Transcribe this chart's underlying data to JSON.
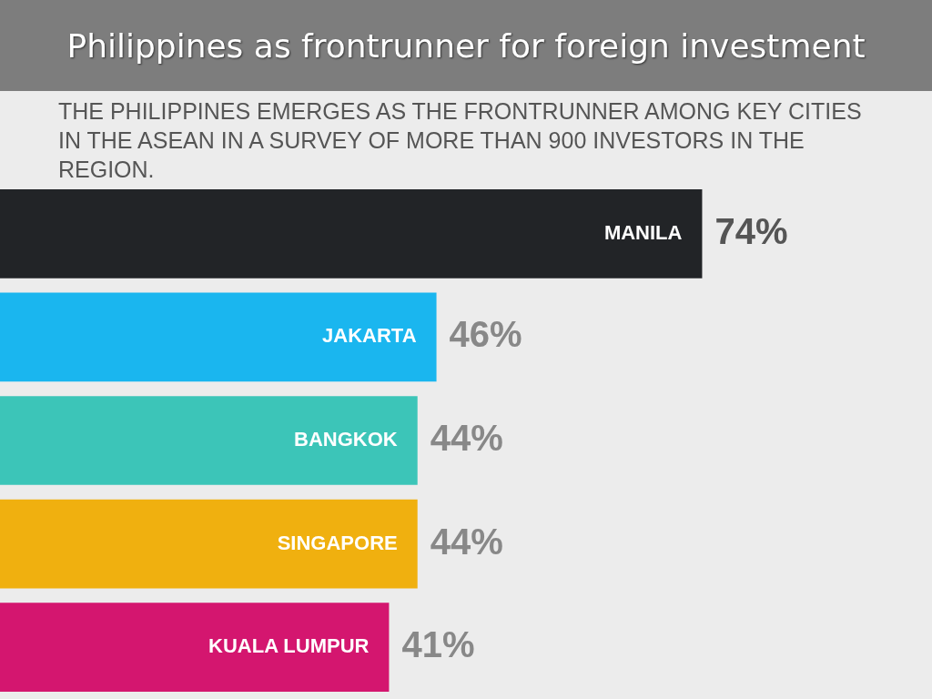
{
  "chart_data": {
    "type": "bar",
    "orientation": "horizontal",
    "title": "Philippines as frontrunner for foreign investment",
    "subtitle": "THE PHILIPPINES EMERGES AS THE FRONTRUNNER AMONG KEY CITIES IN THE ASEAN IN A SURVEY OF MORE THAN 900 INVESTORS IN THE REGION.",
    "categories": [
      "MANILA",
      "JAKARTA",
      "BANGKOK",
      "SINGAPORE",
      "KUALA LUMPUR"
    ],
    "values": [
      74,
      46,
      44,
      44,
      41
    ],
    "value_labels": [
      "74%",
      "46%",
      "44%",
      "44%",
      "41%"
    ],
    "colors": [
      "#222427",
      "#1ab6ef",
      "#3cc5b8",
      "#f0b00f",
      "#d4166f"
    ],
    "legend": false
  }
}
